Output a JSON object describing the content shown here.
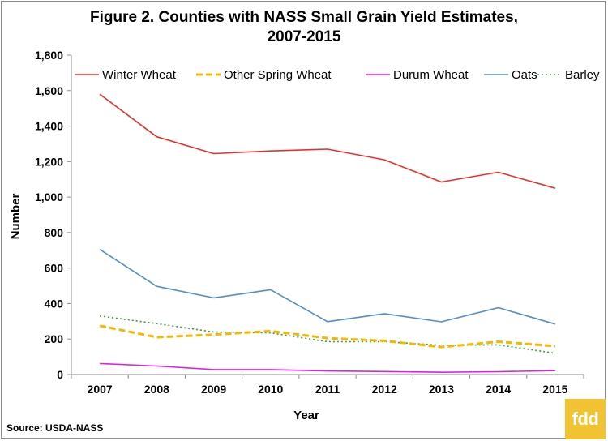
{
  "title_line1": "Figure 2.  Counties with NASS Small Grain Yield Estimates,",
  "title_line2": "2007-2015",
  "source": "Source: USDA-NASS",
  "logo_text": "fdd",
  "logo_color": "#f1c232",
  "chart_data": {
    "type": "line",
    "xlabel": "Year",
    "ylabel": "Number",
    "ylim": [
      0,
      1800
    ],
    "yticks": [
      0,
      200,
      400,
      600,
      800,
      1000,
      1200,
      1400,
      1600,
      1800
    ],
    "ytick_labels": [
      "0",
      "200",
      "400",
      "600",
      "800",
      "1,000",
      "1,200",
      "1,400",
      "1,600",
      "1,800"
    ],
    "categories": [
      "2007",
      "2008",
      "2009",
      "2010",
      "2011",
      "2012",
      "2013",
      "2014",
      "2015"
    ],
    "grid": false,
    "legend_position": "top",
    "series": [
      {
        "name": "Winter Wheat",
        "color": "#e8302a",
        "style": "solid",
        "values": [
          1580,
          1340,
          1245,
          1260,
          1270,
          1210,
          1085,
          1140,
          1050
        ]
      },
      {
        "name": "Other Spring Wheat",
        "color": "#f5b800",
        "style": "dashed",
        "values": [
          275,
          210,
          225,
          245,
          205,
          190,
          155,
          185,
          160
        ]
      },
      {
        "name": "Durum Wheat",
        "color": "#e020e0",
        "style": "solid",
        "values": [
          62,
          48,
          28,
          28,
          20,
          17,
          13,
          16,
          22
        ]
      },
      {
        "name": "Oats",
        "color": "#4f8fcf",
        "style": "solid",
        "values": [
          705,
          497,
          432,
          478,
          298,
          343,
          297,
          377,
          284
        ]
      },
      {
        "name": "Barley",
        "color": "#3d9a3d",
        "style": "dotted",
        "values": [
          330,
          287,
          240,
          235,
          185,
          185,
          165,
          167,
          120
        ]
      }
    ]
  }
}
